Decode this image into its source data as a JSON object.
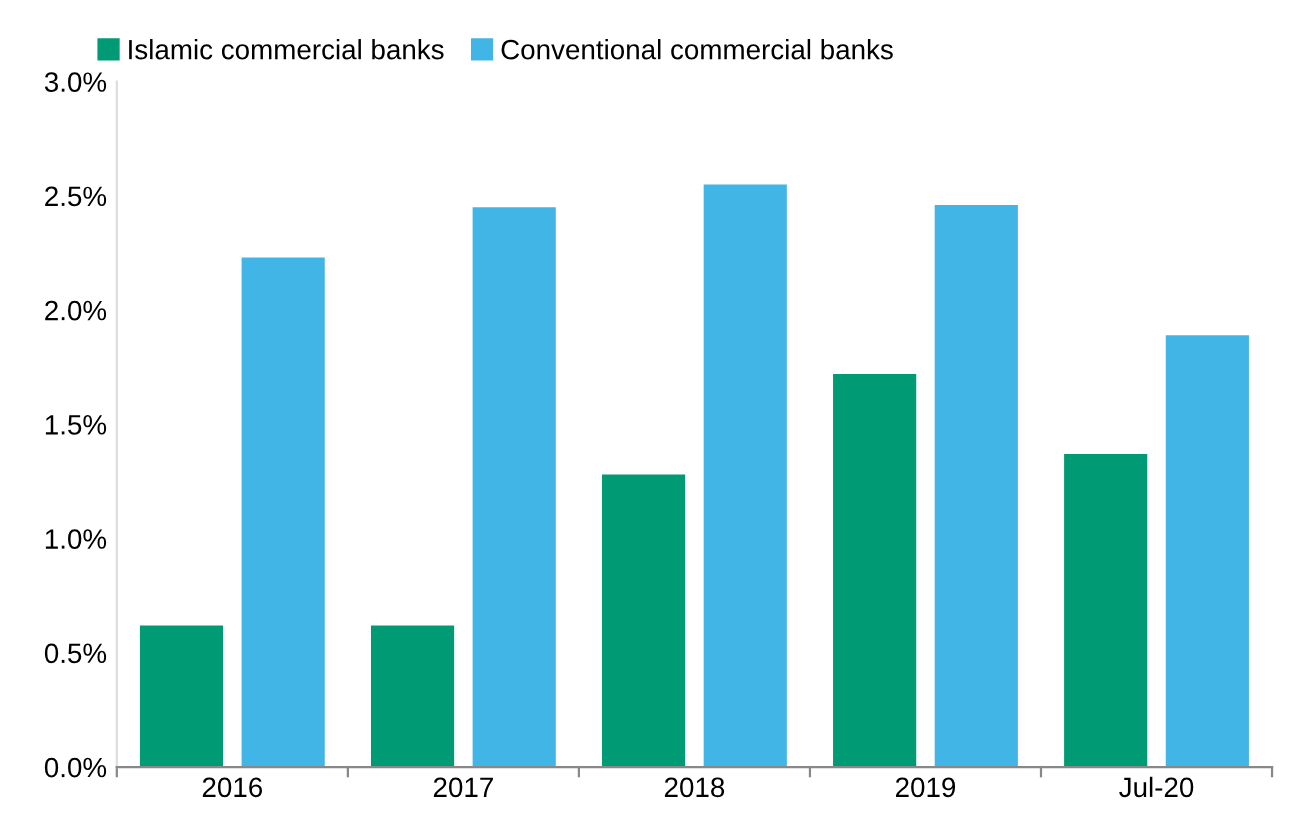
{
  "chart_data": {
    "type": "bar",
    "categories": [
      "2016",
      "2017",
      "2018",
      "2019",
      "Jul-20"
    ],
    "series": [
      {
        "name": "Islamic commercial banks",
        "color": "#009a74",
        "values": [
          0.62,
          0.62,
          1.28,
          1.72,
          1.37
        ]
      },
      {
        "name": "Conventional commercial banks",
        "color": "#41b6e6",
        "values": [
          2.23,
          2.45,
          2.55,
          2.46,
          1.89
        ]
      }
    ],
    "ylim": [
      0,
      3
    ],
    "yticks": [
      {
        "value": 0,
        "label": "0.0%"
      },
      {
        "value": 0.5,
        "label": "0.5%"
      },
      {
        "value": 1,
        "label": "1.0%"
      },
      {
        "value": 1.5,
        "label": "1.5%"
      },
      {
        "value": 2,
        "label": "2.0%"
      },
      {
        "value": 2.5,
        "label": "2.5%"
      },
      {
        "value": 3,
        "label": "3.0%"
      }
    ],
    "grid": false,
    "legend": "top left"
  }
}
